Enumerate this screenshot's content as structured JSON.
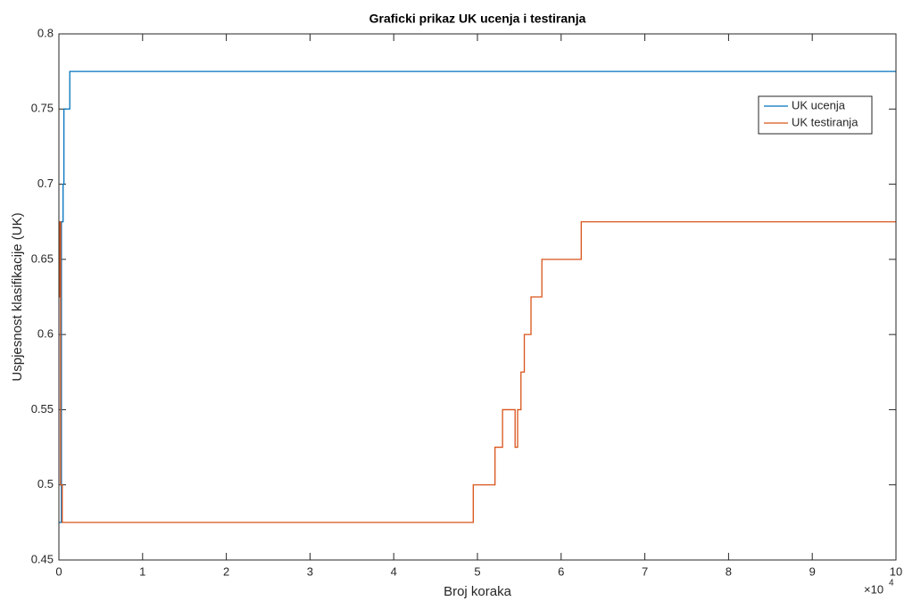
{
  "chart_data": {
    "type": "line",
    "title": "Graficki prikaz UK ucenja i testiranja",
    "x_label": "Broj koraka",
    "y_label": "Uspjesnost klasifikacije (UK)",
    "x_exponent": {
      "base": "×10",
      "power": "4"
    },
    "xlim": [
      0,
      10
    ],
    "xticks": [
      0,
      1,
      2,
      3,
      4,
      5,
      6,
      7,
      8,
      9,
      10
    ],
    "ylim": [
      0.45,
      0.8
    ],
    "yticks": [
      0.45,
      0.5,
      0.55,
      0.6,
      0.65,
      0.7,
      0.75,
      0.8
    ],
    "legend_position": "upper right",
    "series": [
      {
        "name": "UK ucenja",
        "color": "#0072bd",
        "x": [
          0,
          0.03,
          0.03,
          0.05,
          0.05,
          0.06,
          0.06,
          0.13,
          0.13,
          10
        ],
        "values": [
          0.475,
          0.475,
          0.675,
          0.675,
          0.7,
          0.7,
          0.75,
          0.75,
          0.775,
          0.775
        ]
      },
      {
        "name": "UK testiranja",
        "color": "#d95319",
        "x": [
          0,
          0.01,
          0.01,
          0.02,
          0.02,
          0.04,
          0.04,
          4.95,
          4.95,
          5.21,
          5.21,
          5.3,
          5.3,
          5.45,
          5.45,
          5.48,
          5.48,
          5.52,
          5.52,
          5.56,
          5.56,
          5.64,
          5.64,
          5.77,
          5.77,
          6.24,
          6.24,
          10
        ],
        "values": [
          0.625,
          0.625,
          0.675,
          0.675,
          0.5,
          0.5,
          0.475,
          0.475,
          0.5,
          0.5,
          0.525,
          0.525,
          0.55,
          0.55,
          0.525,
          0.525,
          0.55,
          0.55,
          0.575,
          0.575,
          0.6,
          0.6,
          0.625,
          0.625,
          0.65,
          0.65,
          0.675,
          0.675
        ]
      }
    ]
  }
}
